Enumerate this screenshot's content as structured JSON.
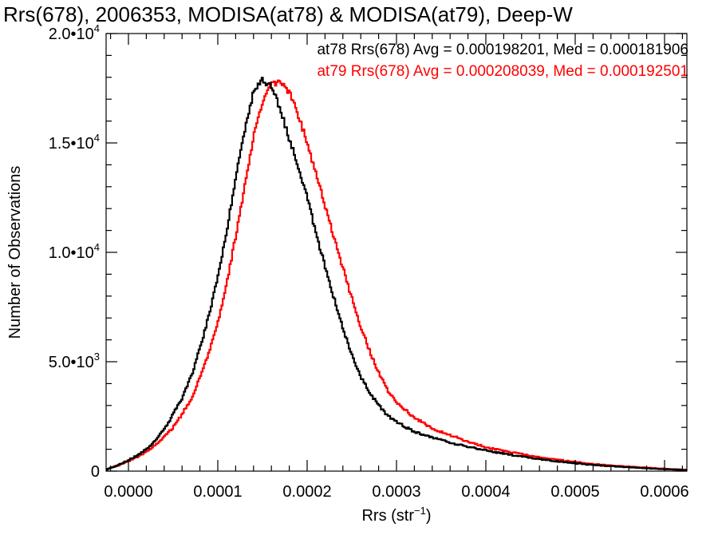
{
  "chart_data": {
    "type": "line",
    "title": "Rrs(678), 2006353, MODISA(at78) & MODISA(at79), Deep-W",
    "xlabel": "Rrs (str",
    "xlabel_sup": "−1",
    "xlabel_close": ")",
    "ylabel": "Number of Observations",
    "xlim": [
      -2.5e-05,
      0.000625
    ],
    "ylim": [
      0,
      20000
    ],
    "grid": false,
    "x_ticks": [
      {
        "value": 0.0,
        "label": "0.0000"
      },
      {
        "value": 0.0001,
        "label": "0.0001"
      },
      {
        "value": 0.0002,
        "label": "0.0002"
      },
      {
        "value": 0.0003,
        "label": "0.0003"
      },
      {
        "value": 0.0004,
        "label": "0.0004"
      },
      {
        "value": 0.0005,
        "label": "0.0005"
      },
      {
        "value": 0.0006,
        "label": "0.0006"
      }
    ],
    "y_ticks": [
      {
        "value": 0,
        "mant": "0",
        "exp": ""
      },
      {
        "value": 5000,
        "mant": "5.0•10",
        "exp": "3"
      },
      {
        "value": 10000,
        "mant": "1.0•10",
        "exp": "4"
      },
      {
        "value": 15000,
        "mant": "1.5•10",
        "exp": "4"
      },
      {
        "value": 20000,
        "mant": "2.0•10",
        "exp": "4"
      }
    ],
    "annotations": [
      {
        "text": "at78 Rrs(678) Avg = 0.000198201, Med = 0.000181906",
        "color": "#000000"
      },
      {
        "text": "at79 Rrs(678) Avg = 0.000208039, Med = 0.000192501",
        "color": "#ff0000"
      }
    ],
    "series": [
      {
        "color": "#000000",
        "x": [
          -2.5e-05,
          -2e-05,
          -1e-05,
          0.0,
          1e-05,
          2e-05,
          3e-05,
          4e-05,
          5e-05,
          6e-05,
          7e-05,
          8e-05,
          9e-05,
          0.0001,
          0.00011,
          0.00012,
          0.00013,
          0.00014,
          0.00015,
          0.00016,
          0.00017,
          0.00018,
          0.00019,
          0.0002,
          0.00021,
          0.00022,
          0.00023,
          0.00024,
          0.00025,
          0.00026,
          0.00027,
          0.00028,
          0.00029,
          0.0003,
          0.00032,
          0.00034,
          0.00036,
          0.00038,
          0.0004,
          0.00042,
          0.00045,
          0.00048,
          0.0005,
          0.00052,
          0.00055,
          0.00058,
          0.0006,
          0.000625
        ],
        "values": [
          50,
          150,
          300,
          500,
          720,
          1000,
          1400,
          1900,
          2600,
          3300,
          4300,
          5600,
          7100,
          8900,
          11000,
          13400,
          15600,
          17300,
          17900,
          17600,
          16500,
          15200,
          13900,
          12600,
          10800,
          9400,
          7900,
          6500,
          5300,
          4300,
          3600,
          3000,
          2550,
          2250,
          1800,
          1550,
          1300,
          1120,
          950,
          800,
          600,
          450,
          360,
          280,
          200,
          130,
          90,
          50
        ]
      },
      {
        "color": "#ff0000",
        "x": [
          -2.5e-05,
          -2e-05,
          -1e-05,
          0.0,
          1e-05,
          2e-05,
          3e-05,
          4e-05,
          5e-05,
          6e-05,
          7e-05,
          8e-05,
          9e-05,
          0.0001,
          0.00011,
          0.00012,
          0.00013,
          0.00014,
          0.00015,
          0.00016,
          0.00017,
          0.00018,
          0.00019,
          0.0002,
          0.00021,
          0.00022,
          0.00023,
          0.00024,
          0.00025,
          0.00026,
          0.00027,
          0.00028,
          0.00029,
          0.0003,
          0.00032,
          0.00034,
          0.00036,
          0.00038,
          0.0004,
          0.00042,
          0.00045,
          0.00048,
          0.0005,
          0.00052,
          0.00055,
          0.00058,
          0.0006,
          0.000625
        ],
        "values": [
          50,
          150,
          280,
          450,
          650,
          880,
          1180,
          1550,
          2000,
          2600,
          3300,
          4250,
          5400,
          6800,
          8600,
          10700,
          13000,
          15300,
          16900,
          17700,
          17800,
          17300,
          16300,
          15000,
          13600,
          12100,
          10700,
          9300,
          7900,
          6600,
          5500,
          4500,
          3700,
          3150,
          2450,
          1950,
          1650,
          1350,
          1100,
          920,
          700,
          520,
          420,
          320,
          230,
          160,
          110,
          60
        ]
      }
    ]
  }
}
